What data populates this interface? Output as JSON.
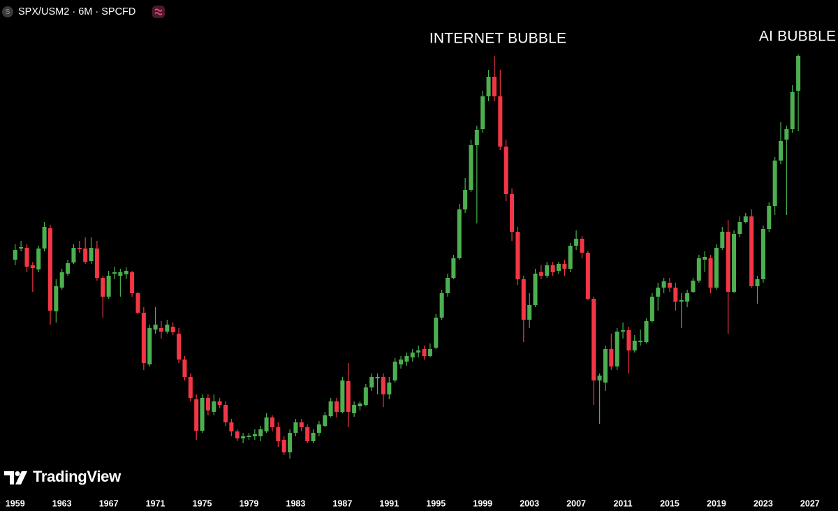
{
  "chart_data": {
    "type": "candlestick",
    "badge": "S",
    "title": "SPX/USM2 · 6M · SPCFD",
    "brand": "TradingView",
    "annotations": [
      "INTERNET BUBBLE",
      "AI BUBBLE"
    ],
    "up_color": "#4caf50",
    "down_color": "#f23645",
    "x": [
      1959,
      1959.5,
      1960,
      1960.5,
      1961,
      1961.5,
      1962,
      1962.5,
      1963,
      1963.5,
      1964,
      1964.5,
      1965,
      1965.5,
      1966,
      1966.5,
      1967,
      1967.5,
      1968,
      1968.5,
      1969,
      1969.5,
      1970,
      1970.5,
      1971,
      1971.5,
      1972,
      1972.5,
      1973,
      1973.5,
      1974,
      1974.5,
      1975,
      1975.5,
      1976,
      1976.5,
      1977,
      1977.5,
      1978,
      1978.5,
      1979,
      1979.5,
      1980,
      1980.5,
      1981,
      1981.5,
      1982,
      1982.5,
      1983,
      1983.5,
      1984,
      1984.5,
      1985,
      1985.5,
      1986,
      1986.5,
      1987,
      1987.5,
      1988,
      1988.5,
      1989,
      1989.5,
      1990,
      1990.5,
      1991,
      1991.5,
      1992,
      1992.5,
      1993,
      1993.5,
      1994,
      1994.5,
      1995,
      1995.5,
      1996,
      1996.5,
      1997,
      1997.5,
      1998,
      1998.5,
      1999,
      1999.5,
      2000,
      2000.5,
      2001,
      2001.5,
      2002,
      2002.5,
      2003,
      2003.5,
      2004,
      2004.5,
      2005,
      2005.5,
      2006,
      2006.5,
      2007,
      2007.5,
      2008,
      2008.5,
      2009,
      2009.5,
      2010,
      2010.5,
      2011,
      2011.5,
      2012,
      2012.5,
      2013,
      2013.5,
      2014,
      2014.5,
      2015,
      2015.5,
      2016,
      2016.5,
      2017,
      2017.5,
      2018,
      2018.5,
      2019,
      2019.5,
      2020,
      2020.5,
      2021,
      2021.5,
      2022,
      2022.5,
      2023,
      2023.5,
      2024,
      2024.5,
      2025,
      2025.5,
      2026
    ],
    "open": [
      328,
      344,
      345,
      320,
      314,
      344,
      373,
      254,
      288,
      308,
      324,
      345,
      344,
      326,
      344,
      302,
      275,
      308,
      305,
      307,
      310,
      280,
      252,
      178,
      228,
      230,
      225,
      232,
      222,
      185,
      160,
      128,
      83,
      130,
      110,
      125,
      120,
      95,
      82,
      72,
      74,
      75,
      75,
      82,
      102,
      88,
      70,
      52,
      80,
      95,
      88,
      68,
      80,
      90,
      104,
      125,
      110,
      154,
      108,
      118,
      120,
      145,
      158,
      160,
      135,
      155,
      178,
      182,
      188,
      195,
      200,
      190,
      202,
      245,
      280,
      302,
      330,
      400,
      428,
      492,
      515,
      562,
      590,
      562,
      490,
      422,
      368,
      300,
      242,
      263,
      310,
      305,
      320,
      312,
      322,
      315,
      348,
      358,
      338,
      272,
      155,
      152,
      200,
      175,
      225,
      227,
      198,
      210,
      210,
      240,
      275,
      288,
      295,
      288,
      268,
      268,
      282,
      298,
      328,
      330,
      288,
      345,
      368,
      282,
      365,
      382,
      390,
      290,
      300,
      372,
      405,
      470,
      500,
      515,
      570
    ],
    "high": [
      350,
      355,
      350,
      325,
      348,
      382,
      378,
      300,
      315,
      328,
      350,
      355,
      360,
      360,
      355,
      305,
      312,
      318,
      315,
      317,
      312,
      282,
      260,
      235,
      260,
      240,
      242,
      238,
      230,
      190,
      165,
      135,
      135,
      135,
      135,
      130,
      125,
      100,
      85,
      80,
      80,
      85,
      90,
      108,
      105,
      95,
      75,
      85,
      100,
      100,
      92,
      85,
      97,
      110,
      130,
      130,
      160,
      180,
      125,
      125,
      150,
      165,
      165,
      165,
      160,
      187,
      190,
      195,
      200,
      205,
      205,
      208,
      250,
      285,
      308,
      335,
      408,
      445,
      500,
      520,
      570,
      600,
      620,
      600,
      500,
      430,
      375,
      305,
      280,
      315,
      320,
      325,
      325,
      325,
      328,
      352,
      370,
      362,
      340,
      275,
      165,
      205,
      222,
      230,
      238,
      232,
      220,
      228,
      244,
      280,
      295,
      302,
      302,
      295,
      280,
      285,
      302,
      335,
      340,
      335,
      350,
      375,
      385,
      370,
      390,
      395,
      400,
      305,
      377,
      410,
      475,
      525,
      520,
      578,
      622
    ],
    "low": [
      320,
      340,
      310,
      282,
      310,
      340,
      235,
      238,
      285,
      305,
      322,
      338,
      322,
      322,
      298,
      245,
      272,
      300,
      275,
      300,
      275,
      250,
      170,
      175,
      222,
      215,
      222,
      220,
      180,
      155,
      125,
      70,
      80,
      105,
      105,
      115,
      90,
      75,
      68,
      65,
      70,
      70,
      68,
      80,
      82,
      60,
      48,
      43,
      75,
      82,
      65,
      65,
      75,
      88,
      102,
      102,
      108,
      88,
      103,
      112,
      118,
      140,
      135,
      117,
      128,
      152,
      172,
      176,
      182,
      188,
      185,
      188,
      200,
      242,
      275,
      300,
      328,
      395,
      425,
      380,
      510,
      555,
      555,
      485,
      412,
      355,
      292,
      210,
      230,
      260,
      300,
      302,
      305,
      308,
      305,
      310,
      342,
      330,
      270,
      120,
      93,
      140,
      170,
      170,
      215,
      165,
      195,
      205,
      208,
      238,
      255,
      280,
      282,
      255,
      230,
      260,
      280,
      295,
      310,
      280,
      285,
      342,
      222,
      280,
      360,
      380,
      288,
      265,
      295,
      368,
      392,
      465,
      392,
      510,
      512
    ],
    "close": [
      342,
      346,
      318,
      316,
      344,
      375,
      255,
      290,
      310,
      323,
      345,
      343,
      325,
      345,
      302,
      275,
      305,
      310,
      310,
      312,
      280,
      252,
      180,
      230,
      235,
      225,
      235,
      224,
      185,
      160,
      130,
      83,
      130,
      112,
      125,
      120,
      95,
      82,
      72,
      75,
      76,
      78,
      85,
      102,
      88,
      68,
      52,
      80,
      95,
      88,
      68,
      80,
      92,
      105,
      125,
      110,
      155,
      110,
      120,
      122,
      145,
      160,
      160,
      135,
      152,
      182,
      185,
      190,
      195,
      198,
      190,
      200,
      245,
      280,
      302,
      330,
      400,
      428,
      492,
      514,
      562,
      590,
      562,
      490,
      422,
      368,
      300,
      242,
      263,
      308,
      305,
      320,
      310,
      322,
      315,
      348,
      358,
      338,
      272,
      155,
      162,
      200,
      175,
      225,
      227,
      198,
      212,
      212,
      240,
      275,
      288,
      297,
      288,
      268,
      270,
      280,
      298,
      330,
      332,
      288,
      345,
      368,
      282,
      365,
      382,
      390,
      290,
      300,
      372,
      405,
      470,
      498,
      515,
      568,
      620
    ],
    "xlim": [
      1957.7,
      2029.4
    ],
    "ylim": [
      0,
      700
    ],
    "xticks": [
      1959,
      1963,
      1967,
      1971,
      1975,
      1979,
      1983,
      1987,
      1991,
      1995,
      1999,
      2003,
      2007,
      2011,
      2015,
      2019,
      2023,
      2027
    ]
  }
}
